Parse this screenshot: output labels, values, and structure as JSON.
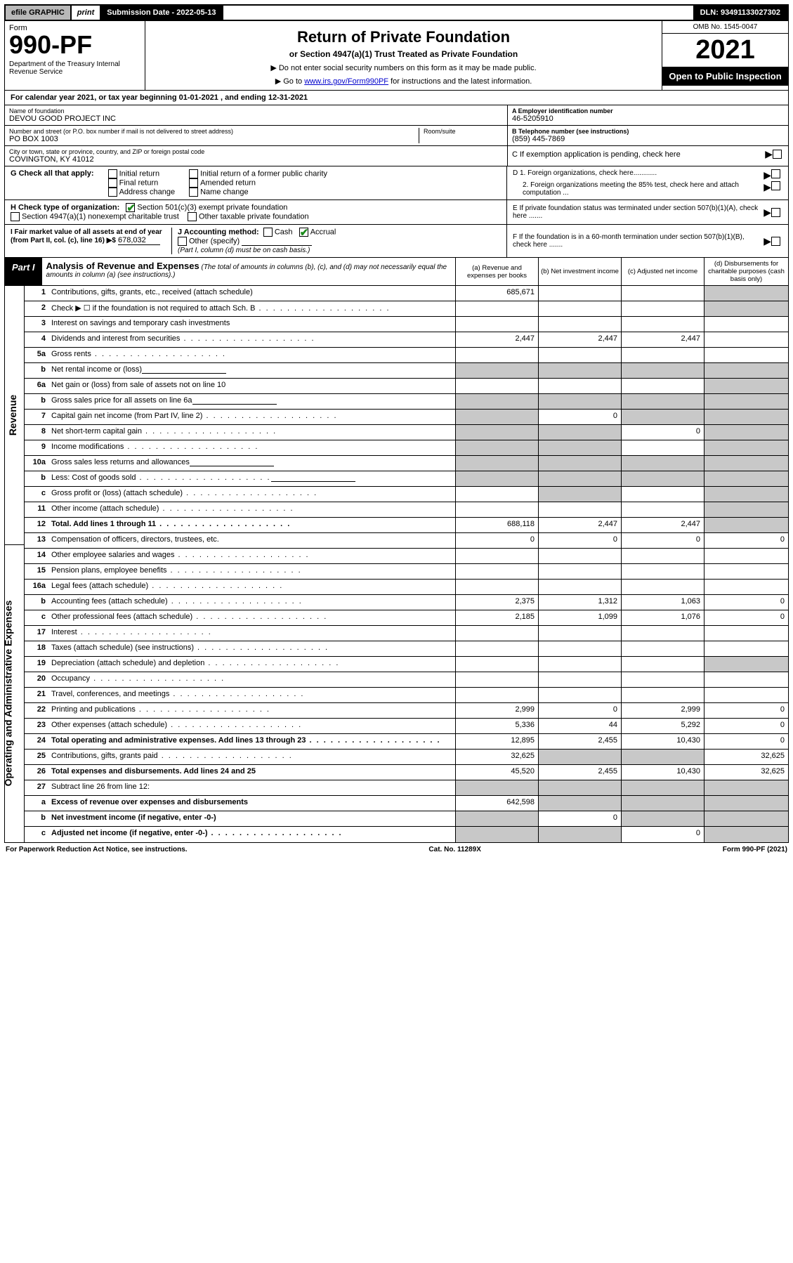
{
  "topbar": {
    "efile": "efile GRAPHIC",
    "print": "print",
    "sub_label": "Submission Date - 2022-05-13",
    "dln": "DLN: 93491133027302"
  },
  "head": {
    "form": "Form",
    "number": "990-PF",
    "dept": "Department of the Treasury\nInternal Revenue Service",
    "title": "Return of Private Foundation",
    "subtitle": "or Section 4947(a)(1) Trust Treated as Private Foundation",
    "note1": "▶ Do not enter social security numbers on this form as it may be made public.",
    "note2_pre": "▶ Go to ",
    "note2_link": "www.irs.gov/Form990PF",
    "note2_post": " for instructions and the latest information.",
    "omb": "OMB No. 1545-0047",
    "year": "2021",
    "open": "Open to Public Inspection"
  },
  "cal": {
    "text_pre": "For calendar year 2021, or tax year beginning ",
    "begin": "01-01-2021",
    "text_mid": " , and ending ",
    "end": "12-31-2021"
  },
  "entity": {
    "name_lbl": "Name of foundation",
    "name": "DEVOU GOOD PROJECT INC",
    "addr_lbl": "Number and street (or P.O. box number if mail is not delivered to street address)",
    "addr": "PO BOX 1003",
    "room_lbl": "Room/suite",
    "city_lbl": "City or town, state or province, country, and ZIP or foreign postal code",
    "city": "COVINGTON, KY  41012",
    "ein_lbl": "A Employer identification number",
    "ein": "46-5205910",
    "tel_lbl": "B Telephone number (see instructions)",
    "tel": "(859) 445-7869",
    "c": "C If exemption application is pending, check here",
    "d1": "D 1. Foreign organizations, check here............",
    "d2": "2. Foreign organizations meeting the 85% test, check here and attach computation ...",
    "e": "E  If private foundation status was terminated under section 507(b)(1)(A), check here .......",
    "f": "F  If the foundation is in a 60-month termination under section 507(b)(1)(B), check here ......."
  },
  "g": {
    "lbl": "G Check all that apply:",
    "opts": [
      "Initial return",
      "Final return",
      "Address change",
      "Initial return of a former public charity",
      "Amended return",
      "Name change"
    ]
  },
  "h": {
    "lbl": "H Check type of organization:",
    "o1": "Section 501(c)(3) exempt private foundation",
    "o2": "Section 4947(a)(1) nonexempt charitable trust",
    "o3": "Other taxable private foundation"
  },
  "i": {
    "lbl": "I Fair market value of all assets at end of year (from Part II, col. (c), line 16) ▶$",
    "val": "678,032"
  },
  "j": {
    "lbl": "J Accounting method:",
    "cash": "Cash",
    "accrual": "Accrual",
    "other": "Other (specify)",
    "note": "(Part I, column (d) must be on cash basis.)"
  },
  "part1": {
    "tag": "Part I",
    "title": "Analysis of Revenue and Expenses",
    "note": " (The total of amounts in columns (b), (c), and (d) may not necessarily equal the amounts in column (a) (see instructions).)",
    "cols": {
      "a": "(a) Revenue and expenses per books",
      "b": "(b) Net investment income",
      "c": "(c) Adjusted net income",
      "d": "(d) Disbursements for charitable purposes (cash basis only)"
    }
  },
  "col_widths": {
    "a": 118,
    "b": 118,
    "c": 118,
    "d": 120
  },
  "sections": {
    "revenue": "Revenue",
    "expenses": "Operating and Administrative Expenses"
  },
  "rows": [
    {
      "sec": "rev",
      "ln": "1",
      "lbl": "Contributions, gifts, grants, etc., received (attach schedule)",
      "a": "685,671",
      "d_shade": true
    },
    {
      "sec": "rev",
      "ln": "2",
      "lbl": "Check ▶ ☐ if the foundation is not required to attach Sch. B",
      "dots": true,
      "d_shade": true,
      "all_shade_bcd": false
    },
    {
      "sec": "rev",
      "ln": "3",
      "lbl": "Interest on savings and temporary cash investments"
    },
    {
      "sec": "rev",
      "ln": "4",
      "lbl": "Dividends and interest from securities",
      "dots": true,
      "a": "2,447",
      "b": "2,447",
      "c": "2,447"
    },
    {
      "sec": "rev",
      "ln": "5a",
      "lbl": "Gross rents",
      "dots": true
    },
    {
      "sec": "rev",
      "ln": "b",
      "lbl": "Net rental income or (loss)",
      "inline_blank": true,
      "shade_all": true
    },
    {
      "sec": "rev",
      "ln": "6a",
      "lbl": "Net gain or (loss) from sale of assets not on line 10",
      "d_shade": true
    },
    {
      "sec": "rev",
      "ln": "b",
      "lbl": "Gross sales price for all assets on line 6a",
      "inline_blank": true,
      "shade_all": true
    },
    {
      "sec": "rev",
      "ln": "7",
      "lbl": "Capital gain net income (from Part IV, line 2)",
      "dots": true,
      "a_shade": true,
      "b": "0",
      "c_shade": true,
      "d_shade": true
    },
    {
      "sec": "rev",
      "ln": "8",
      "lbl": "Net short-term capital gain",
      "dots": true,
      "a_shade": true,
      "b_shade": true,
      "c": "0",
      "d_shade": true
    },
    {
      "sec": "rev",
      "ln": "9",
      "lbl": "Income modifications",
      "dots": true,
      "a_shade": true,
      "b_shade": true,
      "d_shade": true
    },
    {
      "sec": "rev",
      "ln": "10a",
      "lbl": "Gross sales less returns and allowances",
      "inline_blank": true,
      "shade_all": true
    },
    {
      "sec": "rev",
      "ln": "b",
      "lbl": "Less: Cost of goods sold",
      "dots": true,
      "inline_blank": true,
      "shade_all": true
    },
    {
      "sec": "rev",
      "ln": "c",
      "lbl": "Gross profit or (loss) (attach schedule)",
      "dots": true,
      "b_shade": true,
      "d_shade": true
    },
    {
      "sec": "rev",
      "ln": "11",
      "lbl": "Other income (attach schedule)",
      "dots": true,
      "d_shade": true
    },
    {
      "sec": "rev",
      "ln": "12",
      "lbl": "Total. Add lines 1 through 11",
      "dots": true,
      "bold": true,
      "a": "688,118",
      "b": "2,447",
      "c": "2,447",
      "d_shade": true
    },
    {
      "sec": "exp",
      "ln": "13",
      "lbl": "Compensation of officers, directors, trustees, etc.",
      "a": "0",
      "b": "0",
      "c": "0",
      "d": "0"
    },
    {
      "sec": "exp",
      "ln": "14",
      "lbl": "Other employee salaries and wages",
      "dots": true
    },
    {
      "sec": "exp",
      "ln": "15",
      "lbl": "Pension plans, employee benefits",
      "dots": true
    },
    {
      "sec": "exp",
      "ln": "16a",
      "lbl": "Legal fees (attach schedule)",
      "dots": true
    },
    {
      "sec": "exp",
      "ln": "b",
      "lbl": "Accounting fees (attach schedule)",
      "dots": true,
      "a": "2,375",
      "b": "1,312",
      "c": "1,063",
      "d": "0"
    },
    {
      "sec": "exp",
      "ln": "c",
      "lbl": "Other professional fees (attach schedule)",
      "dots": true,
      "a": "2,185",
      "b": "1,099",
      "c": "1,076",
      "d": "0"
    },
    {
      "sec": "exp",
      "ln": "17",
      "lbl": "Interest",
      "dots": true
    },
    {
      "sec": "exp",
      "ln": "18",
      "lbl": "Taxes (attach schedule) (see instructions)",
      "dots": true
    },
    {
      "sec": "exp",
      "ln": "19",
      "lbl": "Depreciation (attach schedule) and depletion",
      "dots": true,
      "d_shade": true
    },
    {
      "sec": "exp",
      "ln": "20",
      "lbl": "Occupancy",
      "dots": true
    },
    {
      "sec": "exp",
      "ln": "21",
      "lbl": "Travel, conferences, and meetings",
      "dots": true
    },
    {
      "sec": "exp",
      "ln": "22",
      "lbl": "Printing and publications",
      "dots": true,
      "a": "2,999",
      "b": "0",
      "c": "2,999",
      "d": "0"
    },
    {
      "sec": "exp",
      "ln": "23",
      "lbl": "Other expenses (attach schedule)",
      "dots": true,
      "a": "5,336",
      "b": "44",
      "c": "5,292",
      "d": "0"
    },
    {
      "sec": "exp",
      "ln": "24",
      "lbl": "Total operating and administrative expenses. Add lines 13 through 23",
      "dots": true,
      "bold": true,
      "a": "12,895",
      "b": "2,455",
      "c": "10,430",
      "d": "0"
    },
    {
      "sec": "exp",
      "ln": "25",
      "lbl": "Contributions, gifts, grants paid",
      "dots": true,
      "a": "32,625",
      "b_shade": true,
      "c_shade": true,
      "d": "32,625"
    },
    {
      "sec": "exp",
      "ln": "26",
      "lbl": "Total expenses and disbursements. Add lines 24 and 25",
      "bold": true,
      "a": "45,520",
      "b": "2,455",
      "c": "10,430",
      "d": "32,625"
    },
    {
      "sec": "exp",
      "ln": "27",
      "lbl": "Subtract line 26 from line 12:",
      "shade_all": true
    },
    {
      "sec": "exp",
      "ln": "a",
      "lbl": "Excess of revenue over expenses and disbursements",
      "bold": true,
      "a": "642,598",
      "b_shade": true,
      "c_shade": true,
      "d_shade": true
    },
    {
      "sec": "exp",
      "ln": "b",
      "lbl": "Net investment income (if negative, enter -0-)",
      "bold": true,
      "a_shade": true,
      "b": "0",
      "c_shade": true,
      "d_shade": true
    },
    {
      "sec": "exp",
      "ln": "c",
      "lbl": "Adjusted net income (if negative, enter -0-)",
      "dots": true,
      "bold": true,
      "a_shade": true,
      "b_shade": true,
      "c": "0",
      "d_shade": true
    }
  ],
  "footer": {
    "left": "For Paperwork Reduction Act Notice, see instructions.",
    "mid": "Cat. No. 11289X",
    "right": "Form 990-PF (2021)"
  }
}
